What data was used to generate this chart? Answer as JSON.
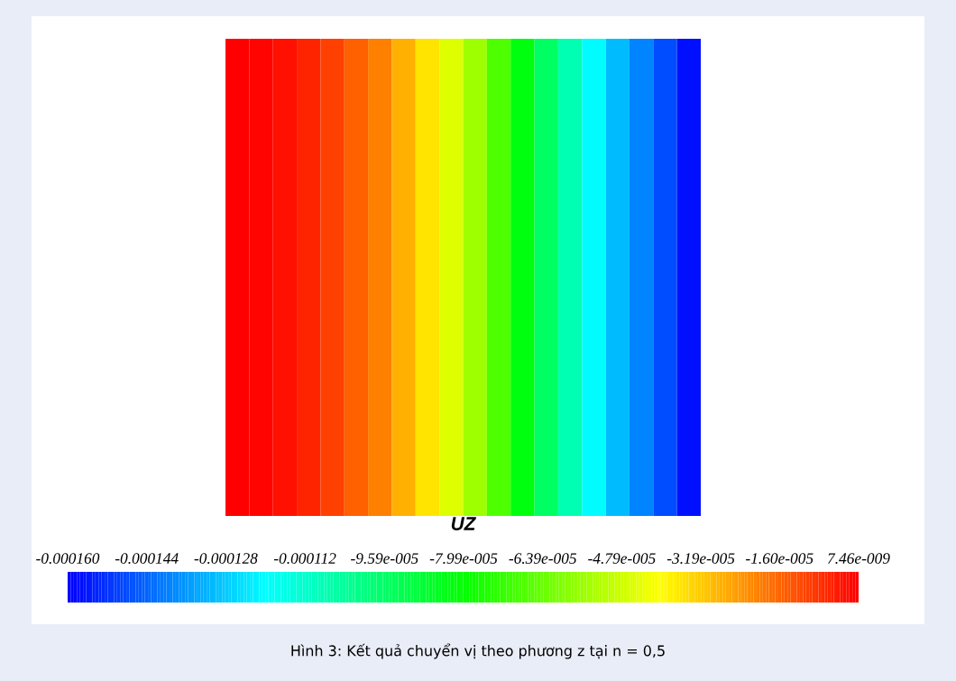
{
  "chart_data": {
    "type": "heatmap",
    "categories": [
      null,
      null,
      null,
      null,
      null,
      null,
      null,
      null,
      null,
      null,
      null,
      null,
      null,
      null,
      null,
      null,
      null,
      null,
      null,
      null
    ],
    "y_categories": [
      null
    ],
    "cells": [
      [
        0,
        -1e-06,
        -3e-06,
        -6e-06,
        -1e-05,
        -1.5e-05,
        -2e-05,
        -2.8e-05,
        -3.6e-05,
        -4.5e-05,
        -5.5e-05,
        -6.8e-05,
        -8.2e-05,
        -9.5e-05,
        -0.000108,
        -0.00012,
        -0.00013,
        -0.000139,
        -0.000148,
        -0.000157
      ]
    ],
    "clabel": "UZ",
    "clim": [
      -0.00016,
      7.46e-09
    ],
    "cticks": [
      {
        "value": -0.00016,
        "label": "-0.000160"
      },
      {
        "value": -0.000144,
        "label": "-0.000144"
      },
      {
        "value": -0.000128,
        "label": "-0.000128"
      },
      {
        "value": -0.000112,
        "label": "-0.000112"
      },
      {
        "value": -9.59e-05,
        "label": "-9.59e-005"
      },
      {
        "value": -7.99e-05,
        "label": "-7.99e-005"
      },
      {
        "value": -6.39e-05,
        "label": "-6.39e-005"
      },
      {
        "value": -4.79e-05,
        "label": "-4.79e-005"
      },
      {
        "value": -3.19e-05,
        "label": "-3.19e-005"
      },
      {
        "value": -1.6e-05,
        "label": "-1.60e-005"
      },
      {
        "value": 7.46e-09,
        "label": "7.46e-009"
      }
    ],
    "annotations": [
      "Hình 3: Kết quả chuyển vị theo phương z tại n = 0,5"
    ]
  }
}
